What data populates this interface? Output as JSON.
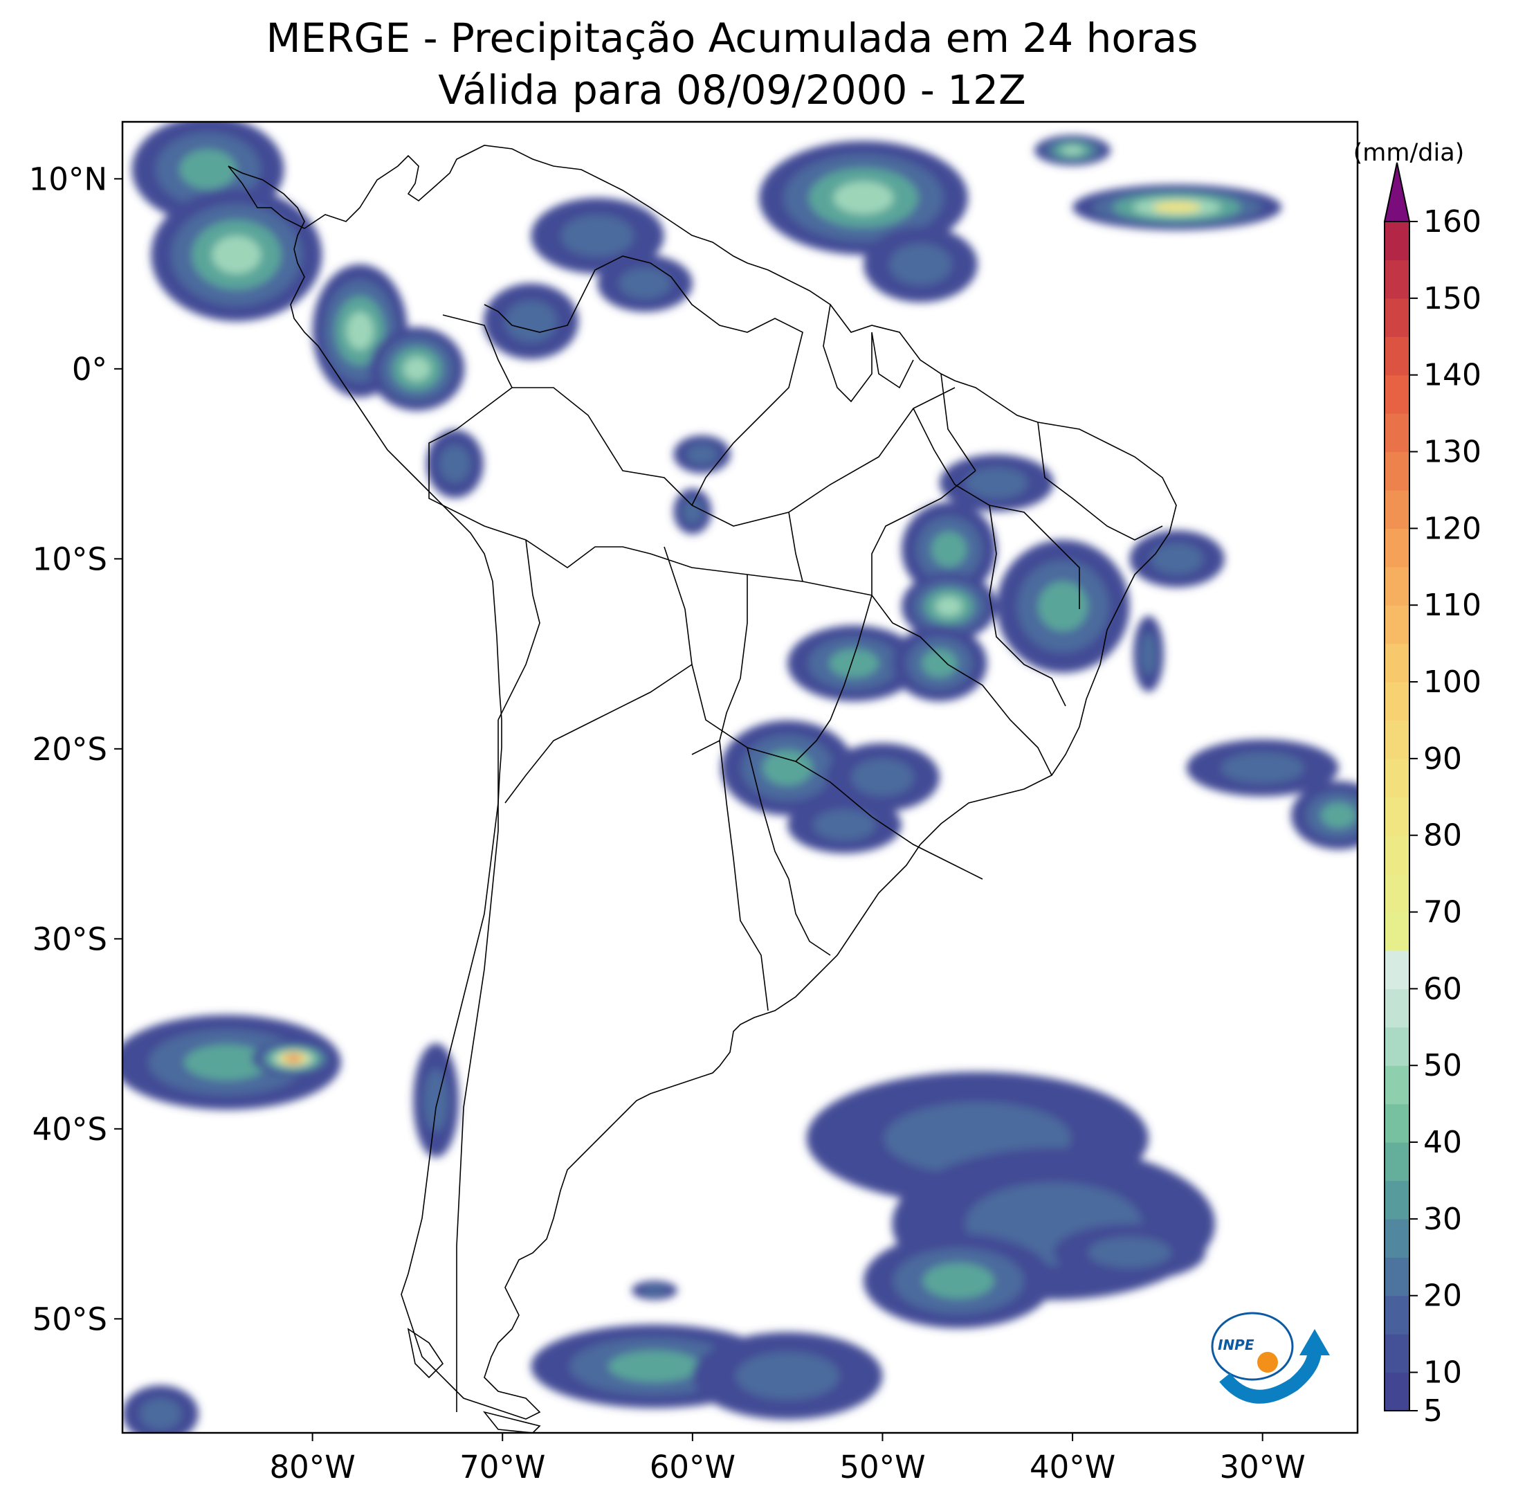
{
  "title": {
    "line1": "MERGE - Precipitação Acumulada em 24 horas",
    "line2": "Válida para 08/09/2000 - 12Z"
  },
  "map": {
    "lon_range": [
      -90,
      -25
    ],
    "lat_range": [
      -56,
      13
    ],
    "x_ticks": [
      {
        "lon": -80,
        "label": "80°W"
      },
      {
        "lon": -70,
        "label": "70°W"
      },
      {
        "lon": -60,
        "label": "60°W"
      },
      {
        "lon": -50,
        "label": "50°W"
      },
      {
        "lon": -40,
        "label": "40°W"
      },
      {
        "lon": -30,
        "label": "30°W"
      }
    ],
    "y_ticks": [
      {
        "lat": 10,
        "label": "10°N"
      },
      {
        "lat": 0,
        "label": "0°"
      },
      {
        "lat": -10,
        "label": "10°S"
      },
      {
        "lat": -20,
        "label": "20°S"
      },
      {
        "lat": -30,
        "label": "30°S"
      },
      {
        "lat": -40,
        "label": "40°S"
      },
      {
        "lat": -50,
        "label": "50°S"
      }
    ]
  },
  "colorbar": {
    "unit": "(mm/dia)",
    "min": 5,
    "max": 160,
    "ticks": [
      5,
      10,
      20,
      30,
      40,
      50,
      60,
      70,
      80,
      90,
      100,
      110,
      120,
      130,
      140,
      150,
      160
    ],
    "stops": [
      {
        "value": 5,
        "color": "#3f3f8f"
      },
      {
        "value": 15,
        "color": "#46579a"
      },
      {
        "value": 25,
        "color": "#4f7ea0"
      },
      {
        "value": 35,
        "color": "#5aa59a"
      },
      {
        "value": 45,
        "color": "#80c9a2"
      },
      {
        "value": 55,
        "color": "#b9e0cf"
      },
      {
        "value": 65,
        "color": "#dfeee8"
      },
      {
        "value": 66,
        "color": "#e6f08e"
      },
      {
        "value": 80,
        "color": "#efe883"
      },
      {
        "value": 100,
        "color": "#f9cf6f"
      },
      {
        "value": 120,
        "color": "#f49a55"
      },
      {
        "value": 140,
        "color": "#e45a40"
      },
      {
        "value": 160,
        "color": "#ad1e46"
      }
    ],
    "extend_color": "#7b0c7b"
  },
  "precip_cells": [
    {
      "lon": -85.5,
      "lat": 10.5,
      "rx": 4,
      "ry": 2.8,
      "level": 2
    },
    {
      "lon": -84,
      "lat": 6,
      "rx": 4.5,
      "ry": 3.5,
      "level": 3
    },
    {
      "lon": -77.5,
      "lat": 2,
      "rx": 2.5,
      "ry": 3.5,
      "level": 3
    },
    {
      "lon": -74.5,
      "lat": 0,
      "rx": 2.5,
      "ry": 2.2,
      "level": 3
    },
    {
      "lon": -65,
      "lat": 7,
      "rx": 3.5,
      "ry": 2,
      "level": 1
    },
    {
      "lon": -68.5,
      "lat": 2.5,
      "rx": 2.5,
      "ry": 2,
      "level": 1
    },
    {
      "lon": -62.5,
      "lat": 4.5,
      "rx": 2.5,
      "ry": 1.5,
      "level": 1
    },
    {
      "lon": -51,
      "lat": 9,
      "rx": 5.5,
      "ry": 3,
      "level": 3
    },
    {
      "lon": -48,
      "lat": 5.5,
      "rx": 3,
      "ry": 2,
      "level": 1
    },
    {
      "lon": -34.5,
      "lat": 8.5,
      "rx": 5.5,
      "ry": 1.2,
      "level": 4
    },
    {
      "lon": -40,
      "lat": 11.5,
      "rx": 2,
      "ry": 0.8,
      "level": 3
    },
    {
      "lon": -72.5,
      "lat": -5,
      "rx": 1.5,
      "ry": 1.8,
      "level": 1
    },
    {
      "lon": -59.5,
      "lat": -4.5,
      "rx": 1.5,
      "ry": 1,
      "level": 1
    },
    {
      "lon": -60,
      "lat": -7.5,
      "rx": 1,
      "ry": 1.2,
      "level": 1
    },
    {
      "lon": -46.5,
      "lat": -9.5,
      "rx": 2.5,
      "ry": 2.5,
      "level": 2
    },
    {
      "lon": -40.5,
      "lat": -12.5,
      "rx": 3.5,
      "ry": 3.5,
      "level": 2
    },
    {
      "lon": -46.5,
      "lat": -12.5,
      "rx": 2.5,
      "ry": 1.8,
      "level": 3
    },
    {
      "lon": -44,
      "lat": -6,
      "rx": 3,
      "ry": 1.5,
      "level": 1
    },
    {
      "lon": -34.5,
      "lat": -10,
      "rx": 2.5,
      "ry": 1.5,
      "level": 1
    },
    {
      "lon": -51.5,
      "lat": -15.5,
      "rx": 3.5,
      "ry": 2,
      "level": 2
    },
    {
      "lon": -47,
      "lat": -15.5,
      "rx": 2.5,
      "ry": 2,
      "level": 2
    },
    {
      "lon": -55,
      "lat": -21,
      "rx": 3.5,
      "ry": 2.5,
      "level": 2
    },
    {
      "lon": -50,
      "lat": -21.5,
      "rx": 3,
      "ry": 1.8,
      "level": 1
    },
    {
      "lon": -52,
      "lat": -24,
      "rx": 3,
      "ry": 1.5,
      "level": 1
    },
    {
      "lon": -36,
      "lat": -15,
      "rx": 0.8,
      "ry": 2,
      "level": 1
    },
    {
      "lon": -30,
      "lat": -21,
      "rx": 4,
      "ry": 1.5,
      "level": 1
    },
    {
      "lon": -26,
      "lat": -23.5,
      "rx": 2.5,
      "ry": 1.8,
      "level": 2
    },
    {
      "lon": -84.5,
      "lat": -36.5,
      "rx": 6,
      "ry": 2.5,
      "level": 2
    },
    {
      "lon": -81,
      "lat": -36.3,
      "rx": 2.2,
      "ry": 0.9,
      "level": 5
    },
    {
      "lon": -73.5,
      "lat": -38.5,
      "rx": 1.2,
      "ry": 3,
      "level": 1
    },
    {
      "lon": -45,
      "lat": -40.5,
      "rx": 9,
      "ry": 3.5,
      "level": 1
    },
    {
      "lon": -41,
      "lat": -45,
      "rx": 8.5,
      "ry": 4,
      "level": 1
    },
    {
      "lon": -46,
      "lat": -48,
      "rx": 5,
      "ry": 2.5,
      "level": 2
    },
    {
      "lon": -37,
      "lat": -46.5,
      "rx": 4,
      "ry": 1.5,
      "level": 1
    },
    {
      "lon": -62,
      "lat": -52.5,
      "rx": 6.5,
      "ry": 2.2,
      "level": 2
    },
    {
      "lon": -55,
      "lat": -53,
      "rx": 5,
      "ry": 2.3,
      "level": 1
    },
    {
      "lon": -62,
      "lat": -48.5,
      "rx": 1.2,
      "ry": 0.5,
      "level": 1
    },
    {
      "lon": -88,
      "lat": -55,
      "rx": 2,
      "ry": 1.5,
      "level": 1
    }
  ],
  "logo": {
    "label": "INPE"
  }
}
